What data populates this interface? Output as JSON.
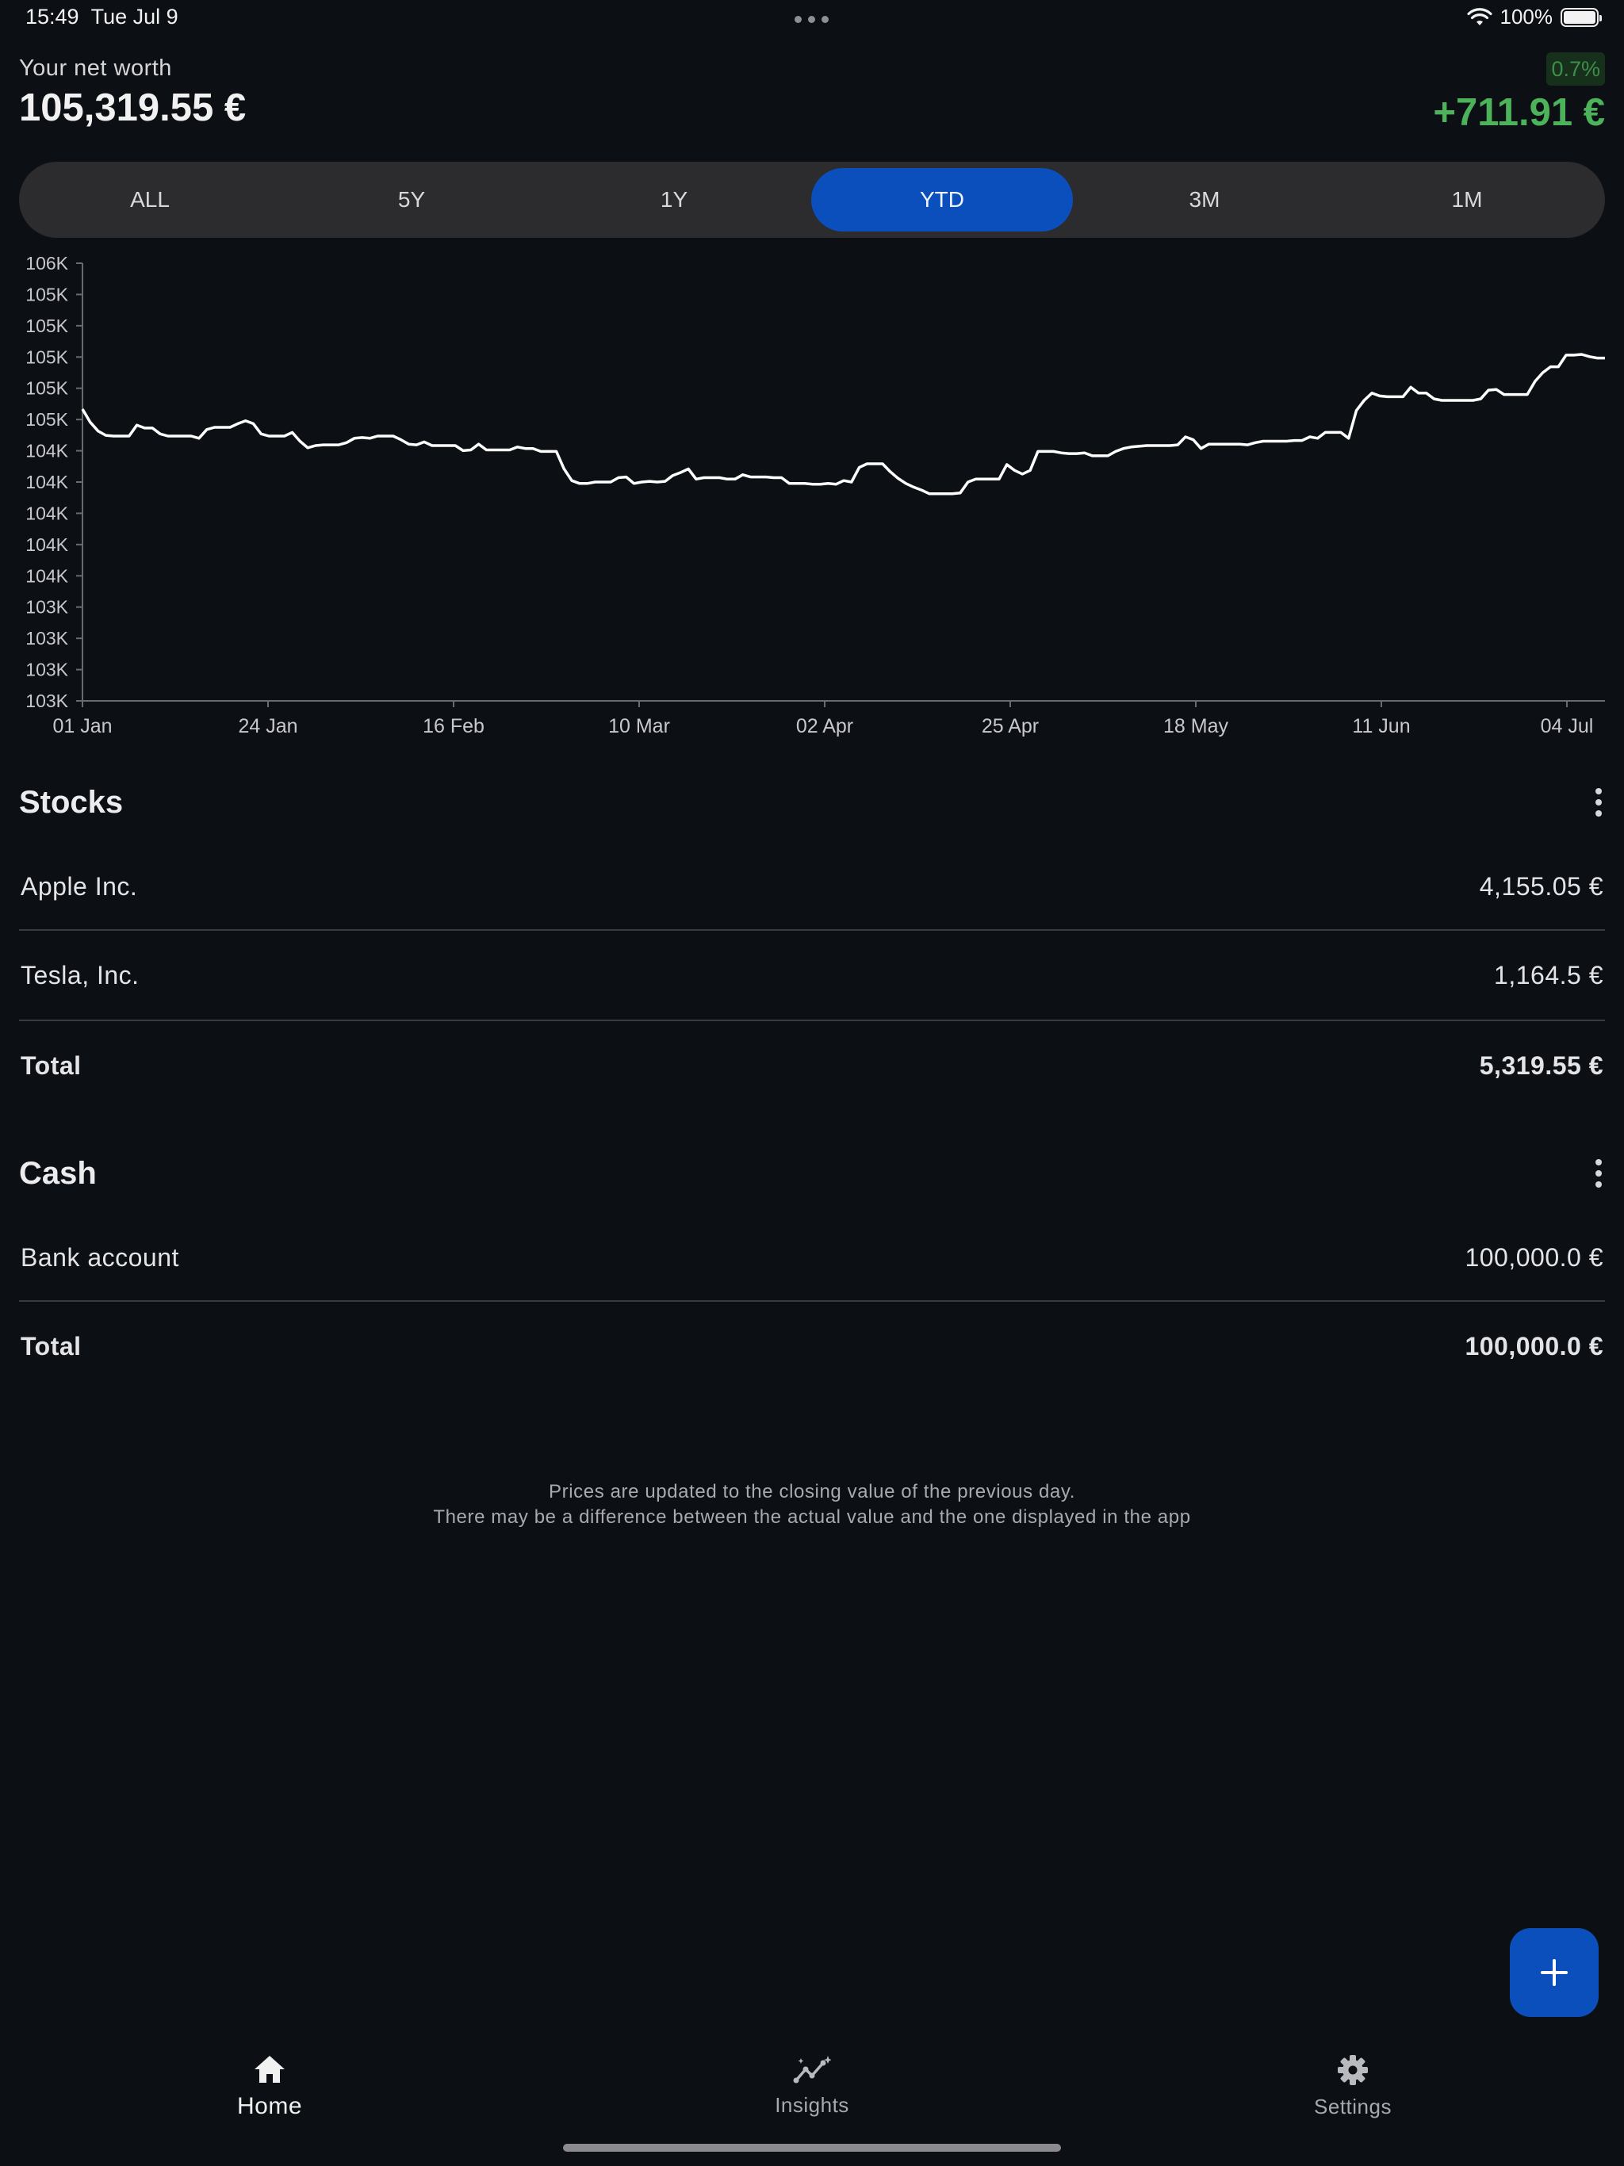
{
  "status_bar": {
    "time": "15:49",
    "date": "Tue Jul 9",
    "battery": "100%",
    "wifi_icon": "wifi-icon",
    "battery_icon": "battery-icon"
  },
  "header": {
    "label": "Your net worth",
    "value": "105,319.55 €",
    "change_percent": "0.7%",
    "change_value": "+711.91 €",
    "positive_color": "#4cb35a"
  },
  "period_tabs": [
    {
      "label": "ALL",
      "active": false
    },
    {
      "label": "5Y",
      "active": false
    },
    {
      "label": "1Y",
      "active": false
    },
    {
      "label": "YTD",
      "active": true
    },
    {
      "label": "3M",
      "active": false
    },
    {
      "label": "1M",
      "active": false
    }
  ],
  "chart_data": {
    "type": "line",
    "y_tick_labels": [
      "106K",
      "105K",
      "105K",
      "105K",
      "105K",
      "105K",
      "104K",
      "104K",
      "104K",
      "104K",
      "104K",
      "103K",
      "103K",
      "103K",
      "103K"
    ],
    "x_tick_labels": [
      "01 Jan",
      "24 Jan",
      "16 Feb",
      "10 Mar",
      "02 Apr",
      "25 Apr",
      "18 May",
      "11 Jun",
      "04 Jul"
    ],
    "ylim": [
      103000,
      106000
    ],
    "series": [
      {
        "values": [
          105000,
          104910,
          104850,
          104820,
          104815,
          104815,
          104815,
          104890,
          104870,
          104870,
          104830,
          104815,
          104815,
          104815,
          104815,
          104800,
          104860,
          104875,
          104875,
          104875,
          104900,
          104920,
          104900,
          104830,
          104815,
          104815,
          104815,
          104840,
          104780,
          104735,
          104750,
          104755,
          104755,
          104755,
          104770,
          104800,
          104805,
          104800,
          104815,
          104815,
          104815,
          104790,
          104760,
          104755,
          104775,
          104750,
          104750,
          104750,
          104750,
          104715,
          104720,
          104760,
          104720,
          104720,
          104720,
          104720,
          104740,
          104730,
          104730,
          104710,
          104710,
          104710,
          104590,
          104510,
          104490,
          104490,
          104500,
          104500,
          104500,
          104530,
          104535,
          104490,
          104500,
          104505,
          104500,
          104505,
          104545,
          104565,
          104590,
          104520,
          104530,
          104530,
          104530,
          104520,
          104520,
          104550,
          104535,
          104535,
          104535,
          104530,
          104530,
          104490,
          104490,
          104490,
          104485,
          104485,
          104490,
          104485,
          104510,
          104500,
          104600,
          104625,
          104625,
          104625,
          104570,
          104525,
          104490,
          104465,
          104445,
          104420,
          104420,
          104420,
          104420,
          104425,
          104500,
          104520,
          104520,
          104520,
          104520,
          104620,
          104580,
          104555,
          104580,
          104710,
          104710,
          104710,
          104700,
          104695,
          104695,
          104700,
          104680,
          104680,
          104680,
          104710,
          104730,
          104740,
          104745,
          104750,
          104750,
          104750,
          104750,
          104755,
          104810,
          104790,
          104730,
          104760,
          104760,
          104760,
          104760,
          104760,
          104755,
          104770,
          104780,
          104780,
          104780,
          104780,
          104785,
          104785,
          104810,
          104800,
          104840,
          104840,
          104840,
          104800,
          104990,
          105060,
          105110,
          105090,
          105085,
          105085,
          105085,
          105150,
          105110,
          105110,
          105070,
          105060,
          105060,
          105060,
          105060,
          105060,
          105070,
          105130,
          105135,
          105100,
          105100,
          105100,
          105100,
          105190,
          105250,
          105290,
          105290,
          105370,
          105370,
          105375,
          105360,
          105350,
          105350
        ]
      }
    ],
    "line_color": "#ffffff"
  },
  "stocks": {
    "title": "Stocks",
    "rows": [
      {
        "label": "Apple Inc.",
        "value": "4,155.05 €"
      },
      {
        "label": "Tesla, Inc.",
        "value": "1,164.5 €"
      }
    ],
    "total_label": "Total",
    "total_value": "5,319.55 €"
  },
  "cash": {
    "title": "Cash",
    "rows": [
      {
        "label": "Bank account",
        "value": "100,000.0 €"
      }
    ],
    "total_label": "Total",
    "total_value": "100,000.0 €"
  },
  "disclaimer": {
    "line1": "Prices are updated to the closing value of the previous day.",
    "line2": "There may be a difference between the actual value and the one displayed in the app"
  },
  "fab": {
    "icon": "plus-icon"
  },
  "nav": [
    {
      "label": "Home",
      "icon": "home-icon",
      "active": true
    },
    {
      "label": "Insights",
      "icon": "insights-icon",
      "active": false
    },
    {
      "label": "Settings",
      "icon": "gear-icon",
      "active": false
    }
  ],
  "accent_color": "#0a4fbc"
}
